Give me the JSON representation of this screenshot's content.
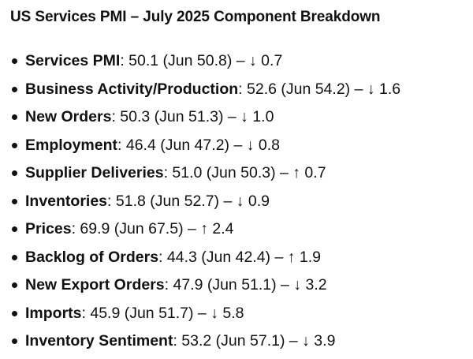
{
  "title": "US Services PMI – July 2025 Component Breakdown",
  "items": [
    {
      "label": "Services PMI",
      "rest": ": 50.1 (Jun 50.8) – ↓ 0.7"
    },
    {
      "label": "Business Activity/Production",
      "rest": ": 52.6 (Jun 54.2) – ↓ 1.6"
    },
    {
      "label": "New Orders",
      "rest": ": 50.3 (Jun 51.3) – ↓ 1.0"
    },
    {
      "label": "Employment",
      "rest": ": 46.4 (Jun 47.2) – ↓ 0.8"
    },
    {
      "label": "Supplier Deliveries",
      "rest": ": 51.0 (Jun 50.3) – ↑ 0.7"
    },
    {
      "label": "Inventories",
      "rest": ": 51.8 (Jun 52.7) – ↓ 0.9"
    },
    {
      "label": "Prices",
      "rest": ": 69.9 (Jun 67.5) – ↑ 2.4"
    },
    {
      "label": "Backlog of Orders",
      "rest": ": 44.3 (Jun 42.4) – ↑ 1.9"
    },
    {
      "label": "New Export Orders",
      "rest": ": 47.9 (Jun 51.1) – ↓ 3.2"
    },
    {
      "label": "Imports",
      "rest": ": 45.9 (Jun 51.7) – ↓ 5.8"
    },
    {
      "label": "Inventory Sentiment",
      "rest": ": 53.2 (Jun 57.1) – ↓ 3.9"
    }
  ]
}
